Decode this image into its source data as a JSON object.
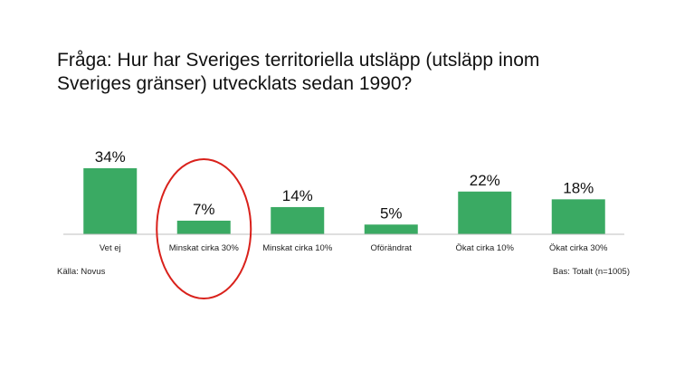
{
  "title": "Fråga: Hur har Sveriges territoriella utsläpp (utsläpp inom Sveriges gränser) utvecklats sedan 1990?",
  "footer": {
    "source": "Källa: Novus",
    "base": "Bas: Totalt (n=1005)"
  },
  "colors": {
    "bar": "#3aaa63",
    "highlight_ellipse": "#d9211b",
    "axis": "#bfbfbf"
  },
  "highlight": {
    "category": "Minskat cirka 30%"
  },
  "chart_data": {
    "type": "bar",
    "title": "Fråga: Hur har Sveriges territoriella utsläpp (utsläpp inom Sveriges gränser) utvecklats sedan 1990?",
    "categories": [
      "Vet ej",
      "Minskat cirka 30%",
      "Minskat cirka 10%",
      "Oförändrat",
      "Ökat cirka 10%",
      "Ökat cirka 30%"
    ],
    "values": [
      34,
      7,
      14,
      5,
      22,
      18
    ],
    "data_labels": [
      "34%",
      "7%",
      "14%",
      "5%",
      "22%",
      "18%"
    ],
    "unit": "%",
    "xlabel": "",
    "ylabel": "",
    "ylim": [
      0,
      34
    ],
    "grid": false,
    "legend": "none"
  }
}
